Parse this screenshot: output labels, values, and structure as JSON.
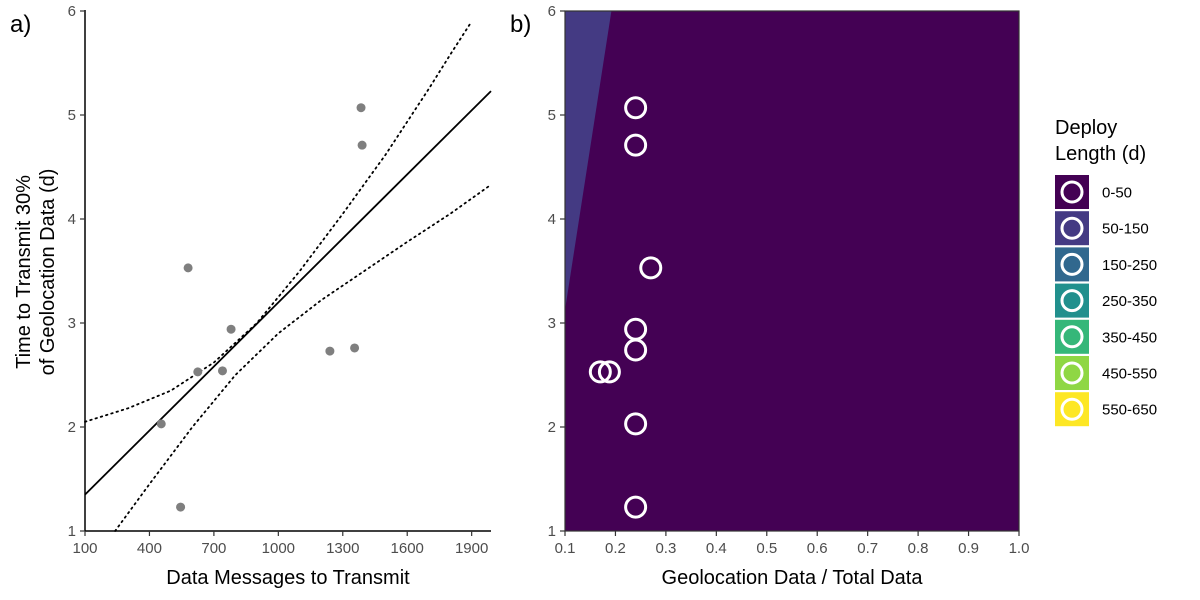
{
  "chart_data": [
    {
      "panel": "a)",
      "type": "scatter",
      "xlabel": "Data Messages to Transmit",
      "ylabel": [
        "Time to Transmit 30%",
        "of Geolocation Data (d)"
      ],
      "xlim": [
        100,
        1990
      ],
      "ylim": [
        1,
        6
      ],
      "xticks": [
        100,
        400,
        700,
        1000,
        1300,
        1600,
        1900
      ],
      "yticks": [
        1,
        2,
        3,
        4,
        5,
        6
      ],
      "grid": false,
      "point_color": "#7f7f7f",
      "points": [
        {
          "x": 455,
          "y": 2.03
        },
        {
          "x": 545,
          "y": 1.23
        },
        {
          "x": 580,
          "y": 3.53
        },
        {
          "x": 625,
          "y": 2.53
        },
        {
          "x": 740,
          "y": 2.54
        },
        {
          "x": 780,
          "y": 2.94
        },
        {
          "x": 1240,
          "y": 2.73
        },
        {
          "x": 1355,
          "y": 2.76
        },
        {
          "x": 1385,
          "y": 5.07
        },
        {
          "x": 1390,
          "y": 4.71
        }
      ],
      "fit_line": {
        "style": "solid",
        "x": [
          100,
          1990
        ],
        "y": [
          1.35,
          5.23
        ]
      },
      "ci_upper": {
        "style": "dotted",
        "x": [
          100,
          300,
          500,
          700,
          900,
          1100,
          1300,
          1500,
          1700,
          1800,
          1900
        ],
        "y": [
          2.05,
          2.18,
          2.35,
          2.62,
          3.0,
          3.5,
          4.05,
          4.62,
          5.25,
          5.58,
          5.9
        ]
      },
      "ci_lower": {
        "style": "dotted",
        "x": [
          240,
          400,
          600,
          800,
          1000,
          1200,
          1400,
          1600,
          1800,
          1990
        ],
        "y": [
          1.0,
          1.45,
          2.0,
          2.5,
          2.9,
          3.22,
          3.5,
          3.78,
          4.05,
          4.33
        ]
      }
    },
    {
      "panel": "b)",
      "type": "heatmap",
      "subtype": "filled contour",
      "xlabel": "Geolocation Data / Total Data",
      "ylabel": "",
      "xlim": [
        0.1,
        1.0
      ],
      "ylim": [
        1,
        6
      ],
      "xticks": [
        "0.1",
        "0.2",
        "0.3",
        "0.4",
        "0.5",
        "0.6",
        "0.7",
        "0.8",
        "0.9",
        "1.0"
      ],
      "yticks": [
        1,
        2,
        3,
        4,
        5,
        6
      ],
      "grid": false,
      "surface": "Deploy Length = 1.6 * y / x",
      "legend": {
        "title": [
          "Deploy",
          "Length (d)"
        ],
        "placement": "right",
        "bins": [
          {
            "label": "0-50",
            "range": [
              0,
              50
            ],
            "color": "#440154"
          },
          {
            "label": "50-150",
            "range": [
              50,
              150
            ],
            "color": "#443a83"
          },
          {
            "label": "150-250",
            "range": [
              150,
              250
            ],
            "color": "#31688e"
          },
          {
            "label": "250-350",
            "range": [
              250,
              350
            ],
            "color": "#21908d"
          },
          {
            "label": "350-450",
            "range": [
              350,
              450
            ],
            "color": "#35b779"
          },
          {
            "label": "450-550",
            "range": [
              450,
              550
            ],
            "color": "#8fd744"
          },
          {
            "label": "550-650",
            "range": [
              550,
              650
            ],
            "color": "#fde725"
          }
        ]
      },
      "points": [
        {
          "x": 0.17,
          "y": 2.53
        },
        {
          "x": 0.188,
          "y": 2.53
        },
        {
          "x": 0.24,
          "y": 5.07
        },
        {
          "x": 0.24,
          "y": 4.71
        },
        {
          "x": 0.27,
          "y": 3.53
        },
        {
          "x": 0.24,
          "y": 2.94
        },
        {
          "x": 0.24,
          "y": 2.74
        },
        {
          "x": 0.24,
          "y": 2.03
        },
        {
          "x": 0.24,
          "y": 1.23
        }
      ],
      "point_style": "open white circles"
    }
  ]
}
